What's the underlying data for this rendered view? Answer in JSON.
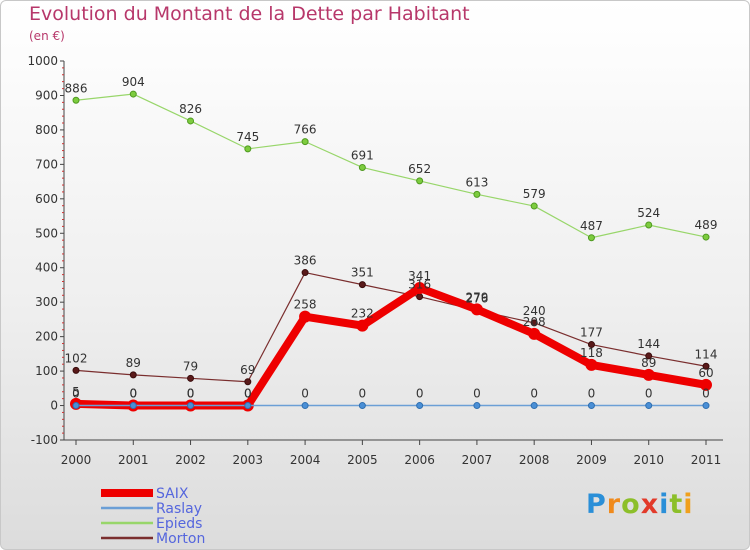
{
  "header": {
    "title": "Evolution du Montant de la Dette par Habitant",
    "subtitle": "(en €)"
  },
  "logo": {
    "text": "Proxiti"
  },
  "chart_data": {
    "type": "line",
    "title": "Evolution du Montant de la Dette par Habitant",
    "subtitle": "(en €)",
    "xlabel": "",
    "ylabel": "",
    "x": [
      "2000",
      "2001",
      "2002",
      "2003",
      "2004",
      "2005",
      "2006",
      "2007",
      "2008",
      "2009",
      "2010",
      "2011"
    ],
    "ylim": [
      -100,
      1000
    ],
    "yticks": [
      -100,
      0,
      100,
      200,
      300,
      400,
      500,
      600,
      700,
      800,
      900,
      1000
    ],
    "grid": false,
    "legend_position": "bottom-left",
    "series": [
      {
        "name": "SAIX",
        "color": "#ee0000",
        "values": [
          5,
          0,
          0,
          0,
          258,
          232,
          341,
          279,
          208,
          118,
          89,
          60
        ]
      },
      {
        "name": "Raslay",
        "color": "#6b9fd6",
        "values": [
          0,
          0,
          0,
          0,
          0,
          0,
          0,
          0,
          0,
          0,
          0,
          0
        ]
      },
      {
        "name": "Epieds",
        "color": "#98d66a",
        "values": [
          886,
          904,
          826,
          745,
          766,
          691,
          652,
          613,
          579,
          487,
          524,
          489
        ]
      },
      {
        "name": "Morton",
        "color": "#7a2e2e",
        "values": [
          102,
          89,
          79,
          69,
          386,
          351,
          316,
          276,
          240,
          177,
          144,
          114
        ]
      }
    ]
  }
}
